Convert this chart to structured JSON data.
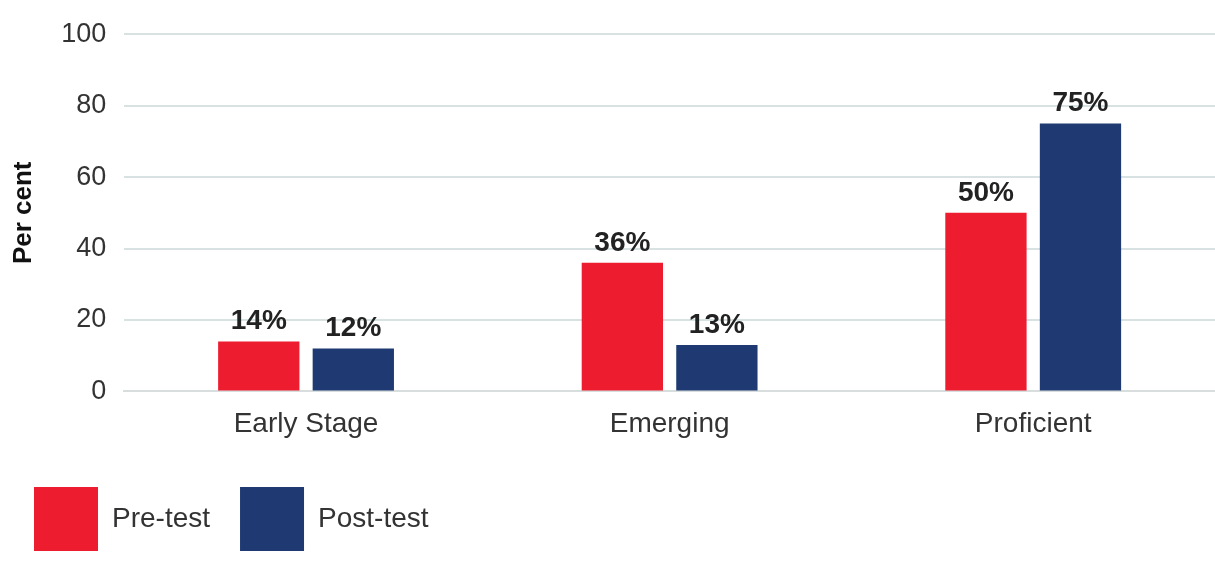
{
  "chart_data": {
    "type": "bar",
    "ylabel": "Per cent",
    "categories": [
      "Early Stage",
      "Emerging",
      "Proficient"
    ],
    "series": [
      {
        "name": "Pre-test",
        "color": "#ed1c2e",
        "values": [
          14,
          36,
          50
        ],
        "value_labels": [
          "14%",
          "36%",
          "50%"
        ]
      },
      {
        "name": "Post-test",
        "color": "#1f3a73",
        "values": [
          12,
          13,
          75
        ],
        "value_labels": [
          "12%",
          "13%",
          "75%"
        ]
      }
    ],
    "ylim": [
      0,
      100
    ],
    "yticks": [
      0,
      20,
      40,
      60,
      80,
      100
    ],
    "grid": "y",
    "legend": "bottom left"
  }
}
